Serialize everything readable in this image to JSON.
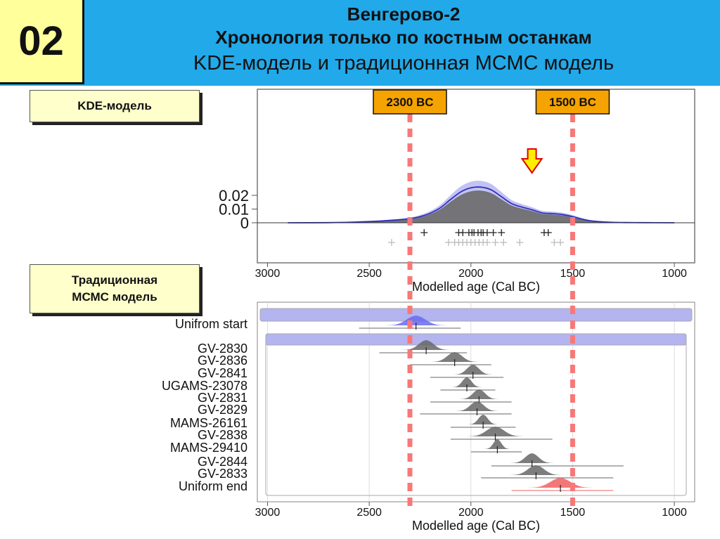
{
  "slide": {
    "number": "02",
    "title_line1": "Венгерово-2",
    "title_line2": "Хронология только по костным останкам",
    "title_line3": "KDE-модель и традиционная МСМС модель",
    "kde_label": "KDE-модель",
    "mcmc_label_line1": "Традиционная",
    "mcmc_label_line2": "МСМС модель"
  },
  "colors": {
    "header_bg": "#21a9ea",
    "number_bg": "#ffff9c",
    "label_bg": "#ffffcc",
    "marker_line": "#f87878",
    "marker_label_bg": "#f5a300",
    "density_fill": "#6a6a6a",
    "envelope_fill": "#b4b4f0",
    "mean_line": "#3030c0",
    "arrow_fill": "#ffee00",
    "arrow_stroke": "#e00000"
  },
  "chart_data": [
    {
      "type": "area",
      "model": "KDE",
      "xlabel": "Modelled age (Cal BC)",
      "xticks": [
        3000,
        2500,
        2000,
        1500,
        1000
      ],
      "yticks": [
        "0",
        "0.01",
        "0.02"
      ],
      "xlim": [
        3050,
        900
      ],
      "ylim": [
        0,
        0.027
      ],
      "series": [
        {
          "name": "",
          "x": [
            2900,
            2700,
            2550,
            2450,
            2350,
            2300,
            2250,
            2200,
            2150,
            2100,
            2050,
            2000,
            1950,
            1900,
            1850,
            1800,
            1750,
            1700,
            1650,
            1600,
            1550,
            1500,
            1450,
            1400,
            1300,
            1150,
            1000
          ],
          "y": [
            0,
            0.0001,
            0.0006,
            0.0012,
            0.0022,
            0.003,
            0.0045,
            0.007,
            0.011,
            0.017,
            0.0225,
            0.0255,
            0.026,
            0.024,
            0.019,
            0.014,
            0.0115,
            0.0095,
            0.0072,
            0.0067,
            0.006,
            0.0045,
            0.0025,
            0.0012,
            0.0003,
            0.0001,
            0
          ]
        }
      ],
      "markers": [
        {
          "label": "2300 BC",
          "x": 2300
        },
        {
          "label": "1500 BC",
          "x": 1500
        }
      ],
      "arrow_x": 1700,
      "dates_row1": [
        2230,
        2060,
        2040,
        2010,
        1995,
        1985,
        1965,
        1950,
        1940,
        1920,
        1890,
        1850,
        1640,
        1620
      ],
      "dates_row2": [
        2390,
        2110,
        2080,
        2060,
        2040,
        2020,
        2000,
        1980,
        1960,
        1940,
        1920,
        1880,
        1840,
        1760,
        1590,
        1560
      ]
    },
    {
      "type": "area",
      "model": "MCMC",
      "xlabel": "Modelled age (Cal BC)",
      "xticks": [
        3000,
        2500,
        2000,
        1500,
        1000
      ],
      "xlim": [
        3050,
        900
      ],
      "categories": [
        "Unifrom start",
        "GV-2830",
        "GV-2836",
        "GV-2841",
        "UGAMS-23078",
        "GV-2831",
        "GV-2829",
        "MAMS-26161",
        "GV-2838",
        "MAMS-29410",
        "GV-2844",
        "GV-2833",
        "Uniform end"
      ],
      "peaks": [
        2270,
        2220,
        2080,
        1990,
        2020,
        1960,
        1970,
        1940,
        1880,
        1870,
        1700,
        1680,
        1560
      ],
      "widths": [
        140,
        110,
        110,
        90,
        70,
        90,
        100,
        70,
        130,
        60,
        100,
        120,
        150
      ],
      "ranges": [
        [
          2550,
          2050
        ],
        [
          2450,
          2020
        ],
        [
          2300,
          1900
        ],
        [
          2200,
          1840
        ],
        [
          2150,
          1880
        ],
        [
          2200,
          1800
        ],
        [
          2250,
          1800
        ],
        [
          2100,
          1780
        ],
        [
          2100,
          1600
        ],
        [
          2000,
          1750
        ],
        [
          1900,
          1250
        ],
        [
          1950,
          1300
        ],
        [
          1800,
          1300
        ]
      ]
    }
  ]
}
